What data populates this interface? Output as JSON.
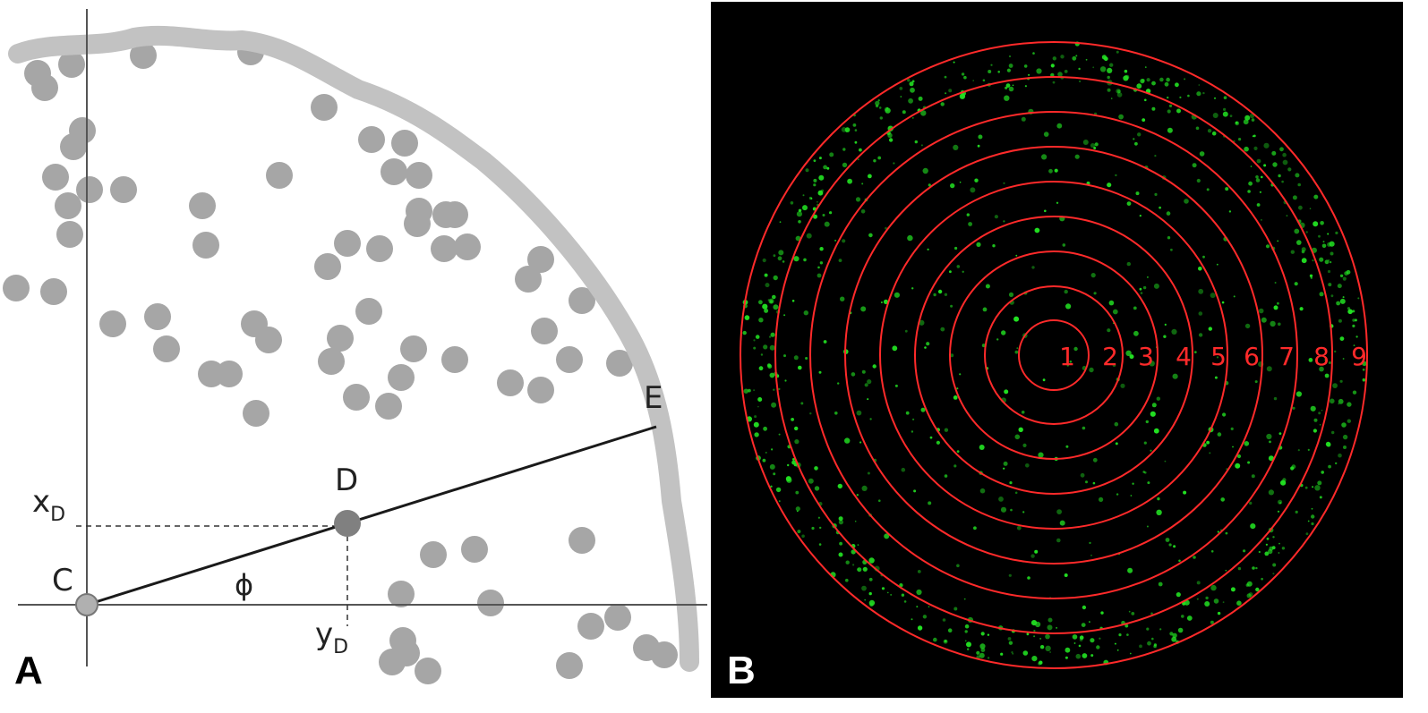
{
  "panels": [
    {
      "letter": "A",
      "labels": {
        "center": "C",
        "point": "D",
        "edge": "E",
        "angle": "ϕ",
        "x_label": "x",
        "x_sub": "D",
        "y_label": "y",
        "y_sub": "D"
      }
    },
    {
      "letter": "B",
      "ring_labels": [
        "1",
        "2",
        "3",
        "4",
        "5",
        "6",
        "7",
        "8",
        "9"
      ]
    }
  ],
  "colors": {
    "cell_gray": "#a6a6a6",
    "boundary_gray": "#c2c2c2",
    "axis": "#555555",
    "segment": "#1a1a1a",
    "point_d": "#808080",
    "panel_b_bg": "#000000",
    "ring": "#ff2a2a",
    "spot": "#22e022"
  }
}
